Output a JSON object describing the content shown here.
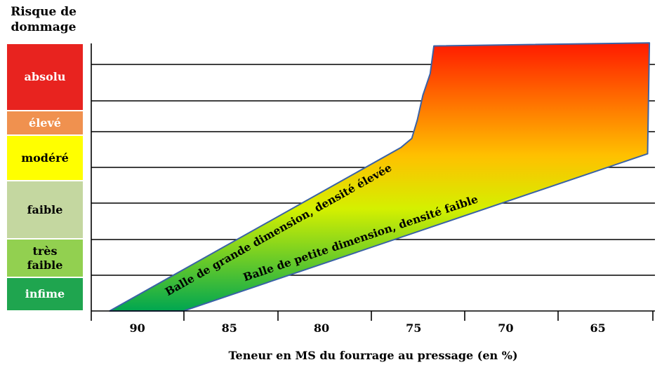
{
  "chart_data": {
    "type": "area",
    "title": "",
    "xlabel": "Teneur en MS du fourrage au pressage (en %)",
    "ylabel": "Risque de dommage",
    "x_ticks": [
      90,
      85,
      80,
      75,
      70,
      65
    ],
    "xlim": [
      92.5,
      61.9
    ],
    "x_reversed": true,
    "risk_levels": [
      {
        "label": "absolu",
        "color": "#e8231f",
        "text_color": "#ffffff"
      },
      {
        "label": "élevé",
        "color": "#f0914f",
        "text_color": "#ffffff"
      },
      {
        "label": "modéré",
        "color": "#ffff00",
        "text_color": "#000000"
      },
      {
        "label": "faible",
        "color": "#c4d7a0",
        "text_color": "#000000"
      },
      {
        "label": "très faible",
        "color": "#92d050",
        "text_color": "#000000"
      },
      {
        "label": "infime",
        "color": "#1fa54f",
        "text_color": "#ffffff"
      }
    ],
    "series": [
      {
        "name": "Balle de grande dimension, densité élevée",
        "points": [
          [
            91.5,
            0
          ],
          [
            75.7,
            5.3
          ],
          [
            75.1,
            5.6
          ],
          [
            74.8,
            6.2
          ],
          [
            74.5,
            7.0
          ],
          [
            74.1,
            7.7
          ],
          [
            73.9,
            8.6
          ]
        ]
      },
      {
        "name": "Balle de petite dimension, densité faible",
        "points": [
          [
            87.5,
            0
          ],
          [
            62.3,
            5.1
          ],
          [
            62.2,
            8.7
          ]
        ]
      }
    ],
    "colors": {
      "gradient_top": "#ff1a00",
      "gradient_mid": "#ffc000",
      "gradient_low": "#d4f000",
      "gradient_bottom": "#00a650",
      "outline": "#3a62a6"
    },
    "grid": true
  }
}
